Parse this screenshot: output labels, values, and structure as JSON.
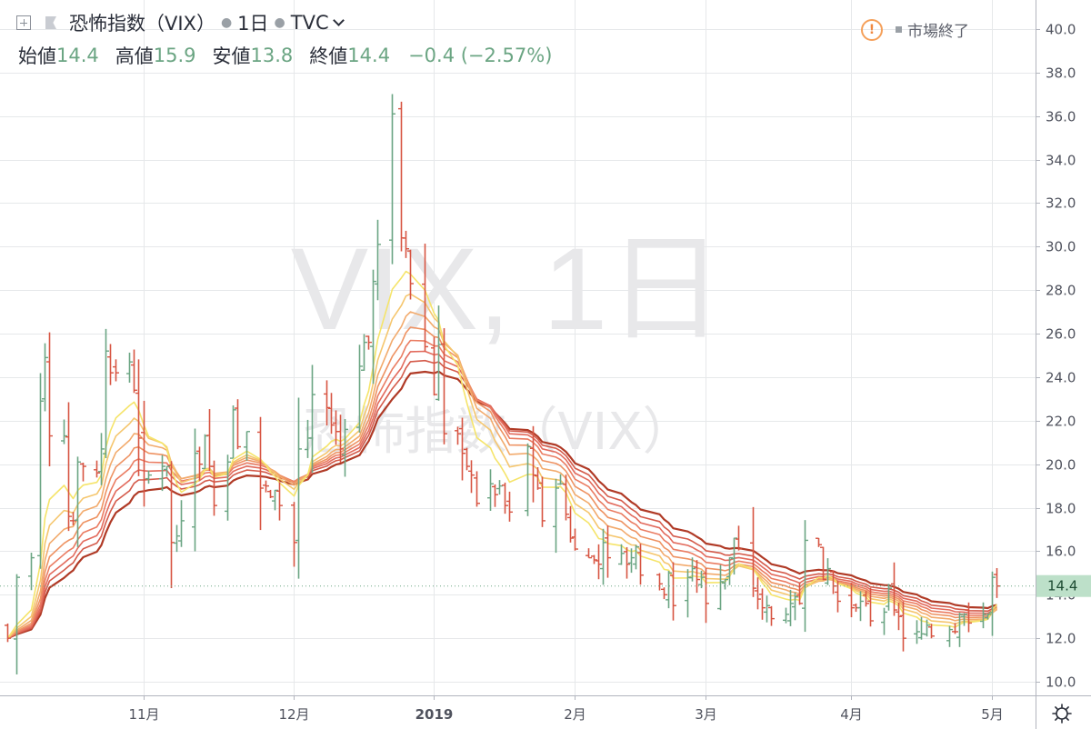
{
  "header": {
    "symbol_title": "恐怖指数（VIX）",
    "interval": "1日",
    "exchange": "TVC",
    "ohlc": {
      "open_label": "始値",
      "open": "14.4",
      "high_label": "高値",
      "high": "15.9",
      "low_label": "安値",
      "low": "13.8",
      "close_label": "終値",
      "close": "14.4",
      "change": "−0.4 (−2.57%)"
    },
    "market_status": "市場終了",
    "alert_glyph": "!"
  },
  "watermark": {
    "line1": "VIX, 1日",
    "line2": "恐怖指数（VIX）"
  },
  "last_price_label": "14.4",
  "colors": {
    "up": "#6ba583",
    "down": "#d75442",
    "ribbon": [
      "#f5e46a",
      "#f5c66e",
      "#f2aa6c",
      "#ee9262",
      "#ea7c62",
      "#e26a5c",
      "#d45a4a",
      "#b03a26"
    ],
    "axis_text": "#50535e",
    "grid": "#e6e8ea",
    "last_price_bg": "#bde0c9"
  },
  "chart_data": {
    "type": "ohlc",
    "title": "恐怖指数（VIX）",
    "interval": "1日",
    "ylim": [
      9.5,
      41
    ],
    "y_ticks": [
      "10.0",
      "12.0",
      "14.0",
      "16.0",
      "18.0",
      "20.0",
      "22.0",
      "24.0",
      "26.0",
      "28.0",
      "30.0",
      "32.0",
      "34.0",
      "36.0",
      "38.0",
      "40.0"
    ],
    "x_ticks": [
      "11月",
      "12月",
      "2019",
      "2月",
      "3月",
      "4月",
      "5月"
    ],
    "x_tick_dates": [
      "2018-11-01",
      "2018-12-03",
      "2019-01-02",
      "2019-02-01",
      "2019-03-01",
      "2019-04-01",
      "2019-05-01"
    ],
    "last_price": 14.4,
    "moving_averages": "8-line exponential moving average ribbon (yellow = fastest, dark red = slowest)",
    "close_path": [
      [
        "2018-10-03",
        12.0
      ],
      [
        "2018-10-05",
        14.8
      ],
      [
        "2018-10-08",
        15.7
      ],
      [
        "2018-10-10",
        22.9
      ],
      [
        "2018-10-11",
        24.9
      ],
      [
        "2018-10-12",
        21.3
      ],
      [
        "2018-10-15",
        21.3
      ],
      [
        "2018-10-16",
        17.6
      ],
      [
        "2018-10-17",
        17.4
      ],
      [
        "2018-10-18",
        20.1
      ],
      [
        "2018-10-19",
        19.9
      ],
      [
        "2018-10-22",
        19.6
      ],
      [
        "2018-10-23",
        20.7
      ],
      [
        "2018-10-24",
        25.2
      ],
      [
        "2018-10-25",
        24.2
      ],
      [
        "2018-10-26",
        24.2
      ],
      [
        "2018-10-29",
        24.7
      ],
      [
        "2018-10-30",
        23.4
      ],
      [
        "2018-10-31",
        21.2
      ],
      [
        "2018-11-01",
        19.3
      ],
      [
        "2018-11-02",
        19.5
      ],
      [
        "2018-11-05",
        19.9
      ],
      [
        "2018-11-06",
        19.9
      ],
      [
        "2018-11-07",
        16.4
      ],
      [
        "2018-11-08",
        16.7
      ],
      [
        "2018-11-09",
        17.4
      ],
      [
        "2018-11-12",
        20.5
      ],
      [
        "2018-11-13",
        20.0
      ],
      [
        "2018-11-14",
        21.3
      ],
      [
        "2018-11-15",
        19.9
      ],
      [
        "2018-11-16",
        18.1
      ],
      [
        "2018-11-19",
        20.1
      ],
      [
        "2018-11-20",
        22.5
      ],
      [
        "2018-11-21",
        20.8
      ],
      [
        "2018-11-23",
        21.5
      ],
      [
        "2018-11-26",
        18.9
      ],
      [
        "2018-11-27",
        19.0
      ],
      [
        "2018-11-28",
        18.5
      ],
      [
        "2018-11-29",
        18.8
      ],
      [
        "2018-11-30",
        18.1
      ],
      [
        "2018-12-03",
        16.4
      ],
      [
        "2018-12-04",
        20.7
      ],
      [
        "2018-12-06",
        21.2
      ],
      [
        "2018-12-07",
        23.2
      ],
      [
        "2018-12-10",
        22.6
      ],
      [
        "2018-12-11",
        21.8
      ],
      [
        "2018-12-12",
        21.5
      ],
      [
        "2018-12-13",
        20.7
      ],
      [
        "2018-12-14",
        21.6
      ],
      [
        "2018-12-17",
        24.5
      ],
      [
        "2018-12-18",
        25.6
      ],
      [
        "2018-12-19",
        25.6
      ],
      [
        "2018-12-20",
        28.4
      ],
      [
        "2018-12-21",
        30.1
      ],
      [
        "2018-12-24",
        36.1
      ],
      [
        "2018-12-26",
        30.4
      ],
      [
        "2018-12-27",
        29.9
      ],
      [
        "2018-12-28",
        28.3
      ],
      [
        "2018-12-31",
        25.4
      ],
      [
        "2019-01-02",
        23.2
      ],
      [
        "2019-01-03",
        25.5
      ],
      [
        "2019-01-04",
        21.4
      ],
      [
        "2019-01-07",
        21.4
      ],
      [
        "2019-01-08",
        20.5
      ],
      [
        "2019-01-09",
        19.9
      ],
      [
        "2019-01-10",
        19.5
      ],
      [
        "2019-01-11",
        18.2
      ],
      [
        "2019-01-14",
        19.1
      ],
      [
        "2019-01-15",
        18.6
      ],
      [
        "2019-01-16",
        19.0
      ],
      [
        "2019-01-17",
        18.1
      ],
      [
        "2019-01-18",
        17.8
      ],
      [
        "2019-01-22",
        20.8
      ],
      [
        "2019-01-23",
        19.5
      ],
      [
        "2019-01-24",
        18.9
      ],
      [
        "2019-01-25",
        17.4
      ],
      [
        "2019-01-28",
        18.9
      ],
      [
        "2019-01-29",
        19.1
      ],
      [
        "2019-01-30",
        17.7
      ],
      [
        "2019-01-31",
        16.6
      ],
      [
        "2019-02-01",
        16.1
      ],
      [
        "2019-02-04",
        15.7
      ],
      [
        "2019-02-05",
        15.6
      ],
      [
        "2019-02-06",
        15.4
      ],
      [
        "2019-02-07",
        16.4
      ],
      [
        "2019-02-08",
        15.7
      ],
      [
        "2019-02-11",
        15.9
      ],
      [
        "2019-02-12",
        15.4
      ],
      [
        "2019-02-13",
        15.7
      ],
      [
        "2019-02-14",
        16.2
      ],
      [
        "2019-02-15",
        14.9
      ],
      [
        "2019-02-19",
        14.5
      ],
      [
        "2019-02-20",
        14.0
      ],
      [
        "2019-02-21",
        15.0
      ],
      [
        "2019-02-22",
        13.5
      ],
      [
        "2019-02-25",
        14.8
      ],
      [
        "2019-02-26",
        15.2
      ],
      [
        "2019-02-27",
        14.7
      ],
      [
        "2019-02-28",
        14.8
      ],
      [
        "2019-03-01",
        13.6
      ],
      [
        "2019-03-04",
        14.6
      ],
      [
        "2019-03-05",
        14.7
      ],
      [
        "2019-03-06",
        15.7
      ],
      [
        "2019-03-07",
        16.6
      ],
      [
        "2019-03-08",
        16.1
      ],
      [
        "2019-03-11",
        14.3
      ],
      [
        "2019-03-12",
        13.8
      ],
      [
        "2019-03-13",
        13.4
      ],
      [
        "2019-03-14",
        13.5
      ],
      [
        "2019-03-15",
        12.9
      ],
      [
        "2019-03-18",
        13.1
      ],
      [
        "2019-03-19",
        13.6
      ],
      [
        "2019-03-20",
        13.9
      ],
      [
        "2019-03-21",
        13.6
      ],
      [
        "2019-03-22",
        16.5
      ],
      [
        "2019-03-25",
        16.3
      ],
      [
        "2019-03-26",
        14.7
      ],
      [
        "2019-03-27",
        15.2
      ],
      [
        "2019-03-28",
        14.4
      ],
      [
        "2019-03-29",
        13.7
      ],
      [
        "2019-04-01",
        13.4
      ],
      [
        "2019-04-02",
        13.4
      ],
      [
        "2019-04-03",
        13.7
      ],
      [
        "2019-04-04",
        13.6
      ],
      [
        "2019-04-05",
        12.8
      ],
      [
        "2019-04-08",
        13.2
      ],
      [
        "2019-04-09",
        14.3
      ],
      [
        "2019-04-10",
        13.3
      ],
      [
        "2019-04-11",
        13.0
      ],
      [
        "2019-04-12",
        12.0
      ],
      [
        "2019-04-15",
        12.3
      ],
      [
        "2019-04-16",
        12.2
      ],
      [
        "2019-04-17",
        12.6
      ],
      [
        "2019-04-18",
        12.1
      ],
      [
        "2019-04-22",
        12.4
      ],
      [
        "2019-04-23",
        12.3
      ],
      [
        "2019-04-24",
        13.1
      ],
      [
        "2019-04-25",
        13.1
      ],
      [
        "2019-04-26",
        12.7
      ],
      [
        "2019-04-29",
        13.1
      ],
      [
        "2019-04-30",
        13.1
      ],
      [
        "2019-05-01",
        14.8
      ],
      [
        "2019-05-02",
        14.4
      ]
    ]
  }
}
